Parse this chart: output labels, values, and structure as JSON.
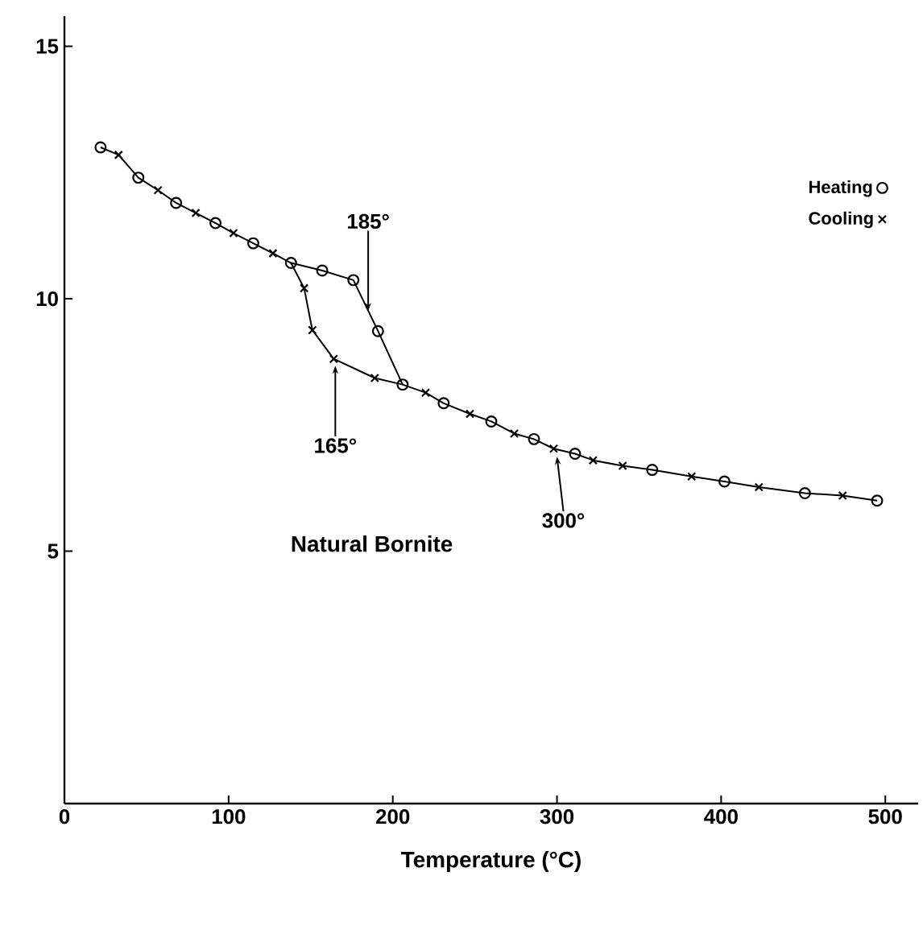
{
  "chart_data": {
    "type": "line",
    "xlabel": "Temperature (°C)",
    "xlim": [
      0,
      520
    ],
    "ylim": [
      0,
      15.6
    ],
    "xticks": [
      0,
      100,
      200,
      300,
      400,
      500
    ],
    "yticks": [
      5,
      10,
      15
    ],
    "legend": "top right",
    "series": [
      {
        "color": "#000000",
        "marker": "none",
        "x": [
          22,
          33,
          45,
          57,
          68,
          80,
          92,
          103,
          115,
          127,
          138,
          157,
          176,
          191,
          206,
          220,
          231,
          247,
          260,
          274,
          286,
          298,
          311,
          322,
          340,
          358,
          382,
          402,
          423,
          451,
          474,
          495
        ],
        "values": [
          13.0,
          12.85,
          12.4,
          12.15,
          11.9,
          11.7,
          11.5,
          11.3,
          11.1,
          10.9,
          10.71,
          10.56,
          10.37,
          9.36,
          8.3,
          8.14,
          7.93,
          7.72,
          7.57,
          7.33,
          7.22,
          7.03,
          6.93,
          6.8,
          6.69,
          6.61,
          6.48,
          6.38,
          6.27,
          6.15,
          6.1,
          6.0
        ]
      },
      {
        "color": "#000000",
        "marker": "none",
        "x": [
          138,
          146,
          151,
          164,
          189,
          206
        ],
        "values": [
          10.71,
          10.21,
          9.38,
          8.81,
          8.43,
          8.3
        ]
      },
      {
        "type": "scatter",
        "name": "Heating",
        "color": "#000000",
        "marker": "circle",
        "x": [
          22,
          45,
          68,
          92,
          115,
          138,
          157,
          176,
          191,
          206,
          231,
          260,
          286,
          311,
          358,
          402,
          451,
          495
        ],
        "values": [
          13.0,
          12.4,
          11.9,
          11.5,
          11.1,
          10.71,
          10.56,
          10.37,
          9.36,
          8.3,
          7.93,
          7.57,
          7.22,
          6.93,
          6.61,
          6.38,
          6.15,
          6.0
        ]
      },
      {
        "type": "scatter",
        "name": "Cooling",
        "color": "#000000",
        "marker": "cross",
        "x": [
          33,
          57,
          80,
          103,
          127,
          146,
          151,
          164,
          189,
          220,
          247,
          274,
          298,
          322,
          340,
          382,
          423,
          474
        ],
        "values": [
          12.85,
          12.15,
          11.7,
          11.3,
          10.9,
          10.21,
          9.38,
          8.81,
          8.43,
          8.14,
          7.72,
          7.33,
          7.03,
          6.8,
          6.69,
          6.48,
          6.27,
          6.1
        ]
      }
    ],
    "annotations": [
      {
        "text": "185°",
        "x": 185,
        "y": 9.76
      },
      {
        "text": "165°",
        "x": 165,
        "y": 8.8
      },
      {
        "text": "300°",
        "x": 300,
        "y": 7.0
      },
      "Natural Bornite"
    ]
  }
}
